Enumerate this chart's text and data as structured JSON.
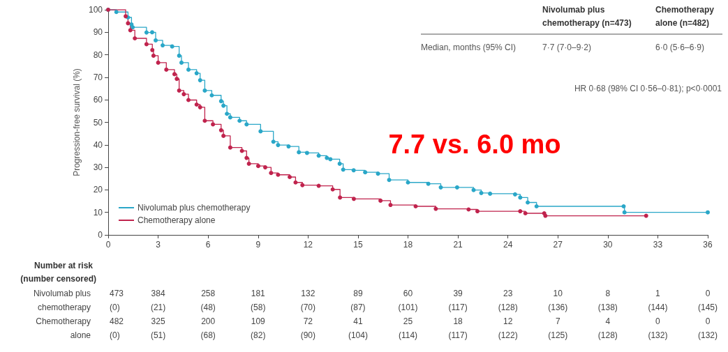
{
  "chart_data": {
    "type": "step",
    "ylabel": "Progression-free survival (%)",
    "xlim": [
      0,
      36
    ],
    "xticks": [
      0,
      3,
      6,
      9,
      12,
      15,
      18,
      21,
      24,
      27,
      30,
      33,
      36
    ],
    "ylim": [
      0,
      100
    ],
    "yticks": [
      0,
      10,
      20,
      30,
      40,
      50,
      60,
      70,
      80,
      90,
      100
    ],
    "grid": false,
    "legend": "bottom left",
    "marker": "circle",
    "line_style": "solid",
    "series": [
      {
        "name": "Nivolumab plus chemotherapy",
        "color": "#2aa7c8",
        "x": [
          0,
          0.49,
          1.19,
          1.4,
          1.47,
          2.3,
          2.64,
          2.85,
          3.27,
          3.84,
          4.26,
          4.4,
          4.82,
          5.31,
          5.52,
          5.8,
          6.22,
          6.78,
          6.92,
          7.13,
          7.33,
          7.89,
          8.31,
          9.15,
          9.92,
          10.2,
          10.83,
          11.45,
          11.94,
          12.64,
          13.13,
          13.34,
          13.9,
          14.11,
          14.74,
          15.43,
          16.2,
          16.87,
          18.0,
          19.22,
          19.97,
          20.95,
          21.94,
          22.4,
          22.93,
          24.43,
          24.74,
          25.19,
          25.72,
          30.95,
          31.0,
          36
        ],
        "values": [
          100,
          99,
          96.6,
          93.5,
          92.2,
          89.9,
          90,
          86.4,
          84.2,
          83.7,
          79.6,
          76.5,
          73.4,
          71.8,
          68.7,
          64.1,
          62,
          59.4,
          57.4,
          53.8,
          52.2,
          50.7,
          49.1,
          46,
          41.4,
          39.9,
          39.3,
          36.7,
          36.4,
          35.2,
          34.2,
          33.6,
          31.6,
          29,
          28.7,
          27.8,
          27.2,
          24.4,
          23.3,
          22.7,
          21.1,
          21.1,
          19.9,
          18.6,
          18.3,
          18,
          16.6,
          14.4,
          12.7,
          12.7,
          10,
          10
        ]
      },
      {
        "name": "Chemotherapy alone",
        "color": "#c0234d",
        "x": [
          0,
          1.05,
          1.19,
          1.33,
          1.6,
          2.3,
          2.65,
          2.72,
          3.0,
          3.49,
          3.98,
          4.12,
          4.26,
          4.54,
          4.82,
          5.31,
          5.52,
          5.8,
          6.29,
          6.78,
          6.92,
          7.33,
          8.03,
          8.31,
          8.45,
          9.01,
          9.43,
          9.78,
          10.2,
          10.9,
          11.25,
          11.66,
          12.64,
          13.48,
          13.92,
          14.75,
          16.35,
          16.95,
          18.46,
          19.67,
          21.64,
          22.17,
          24.74,
          25.05,
          26.18,
          26.25,
          32.3
        ],
        "values": [
          100,
          97.1,
          94,
          90.9,
          87.3,
          84.7,
          82.1,
          79.6,
          76.5,
          73.4,
          71.4,
          69.3,
          64.1,
          62.5,
          59.9,
          57.9,
          56.7,
          50.7,
          49.1,
          46.5,
          44,
          38.8,
          37.3,
          34.2,
          31.6,
          30.6,
          30,
          27.5,
          26.7,
          25.7,
          23.3,
          22.1,
          21.8,
          20.2,
          16.6,
          16,
          15.2,
          13.3,
          12.7,
          11.6,
          11.3,
          10.5,
          10.5,
          9.6,
          9.6,
          8.5,
          8.5
        ]
      }
    ],
    "annotations": [
      "7.7 vs. 6.0 mo",
      "HR 0·68 (98% CI 0·56–0·81); p<0·0001",
      "Nivolumab plus",
      "chemotherapy (n=473)",
      "Chemotherapy",
      "alone (n=482)",
      "Median, months (95% CI)",
      "7·7 (7·0–9·2)",
      "6·0 (5·6–6·9)",
      "Number at risk",
      "(number censored)",
      "Nivolumab plus",
      "chemotherapy",
      "Chemotherapy",
      "alone",
      "473",
      "384",
      "258",
      "181",
      "132",
      "89",
      "60",
      "39",
      "23",
      "10",
      "8",
      "1",
      "0",
      "(0)",
      "(21)",
      "(48)",
      "(58)",
      "(70)",
      "(87)",
      "(101)",
      "(117)",
      "(128)",
      "(136)",
      "(138)",
      "(144)",
      "(145)",
      "482",
      "325",
      "200",
      "109",
      "72",
      "41",
      "25",
      "18",
      "12",
      "7",
      "4",
      "0",
      "0",
      "(0)",
      "(51)",
      "(68)",
      "(82)",
      "(90)",
      "(104)",
      "(114)",
      "(117)",
      "(122)",
      "(125)",
      "(128)",
      "(132)",
      "(132)"
    ]
  }
}
